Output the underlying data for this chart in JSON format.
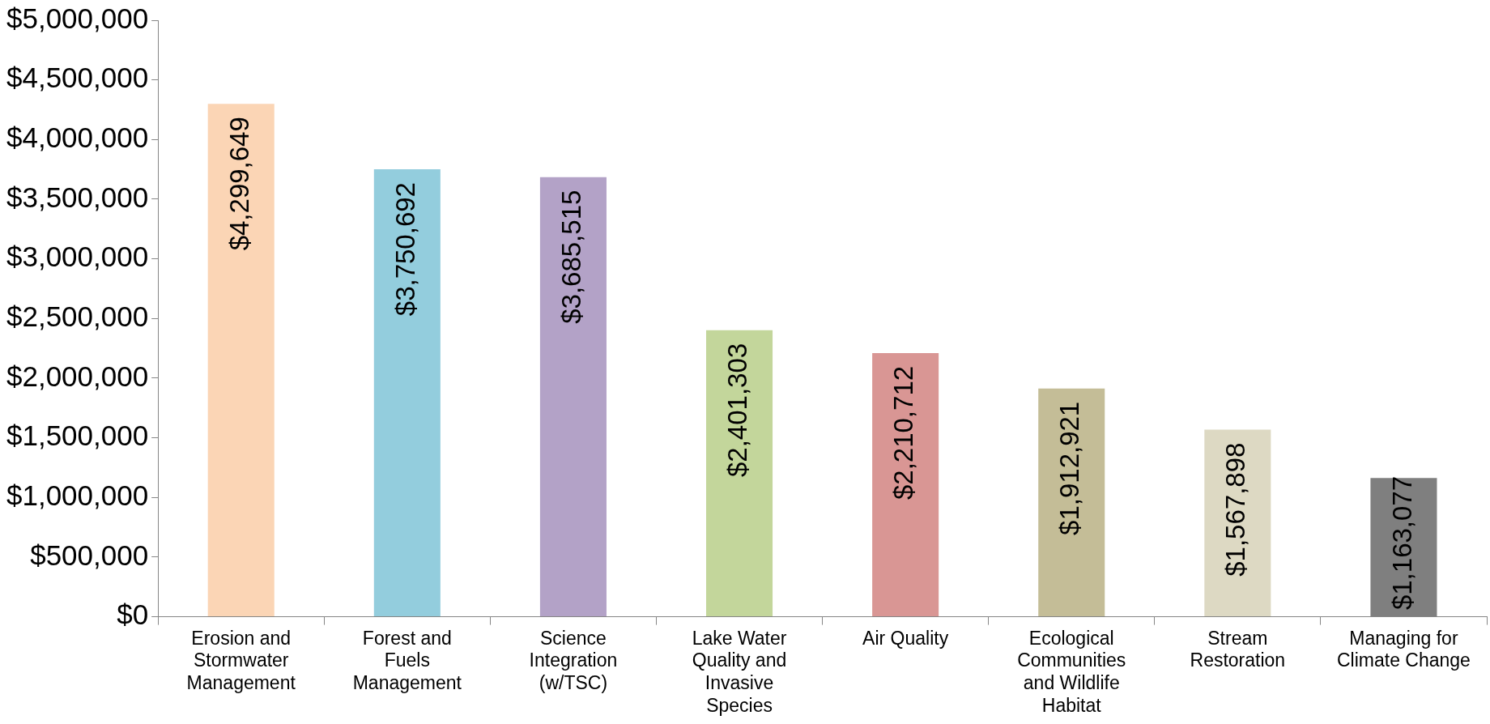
{
  "chart_data": {
    "type": "bar",
    "categories": [
      "Erosion and Stormwater Management",
      "Forest and Fuels Management",
      "Science Integration (w/TSC)",
      "Lake Water Quality and Invasive Species",
      "Air Quality",
      "Ecological Communities and Wildlife Habitat",
      "Stream Restoration",
      "Managing for Climate Change"
    ],
    "values": [
      4299649,
      3750692,
      3685515,
      2401303,
      2210712,
      1912921,
      1567898,
      1163077
    ],
    "value_labels": [
      "$4,299,649",
      "$3,750,692",
      "$3,685,515",
      "$2,401,303",
      "$2,210,712",
      "$1,912,921",
      "$1,567,898",
      "$1,163,077"
    ],
    "colors": [
      "#fbd5b5",
      "#93cddd",
      "#b3a2c7",
      "#c3d69b",
      "#d99694",
      "#c4bd97",
      "#ddd9c3",
      "#7f7f7f"
    ],
    "ylim": [
      0,
      5000000
    ],
    "yticks": [
      {
        "value": 0,
        "label": "$0"
      },
      {
        "value": 500000,
        "label": "$500,000"
      },
      {
        "value": 1000000,
        "label": "$1,000,000"
      },
      {
        "value": 1500000,
        "label": "$1,500,000"
      },
      {
        "value": 2000000,
        "label": "$2,000,000"
      },
      {
        "value": 2500000,
        "label": "$2,500,000"
      },
      {
        "value": 3000000,
        "label": "$3,000,000"
      },
      {
        "value": 3500000,
        "label": "$3,500,000"
      },
      {
        "value": 4000000,
        "label": "$4,000,000"
      },
      {
        "value": 4500000,
        "label": "$4,500,000"
      },
      {
        "value": 5000000,
        "label": "$5,000,000"
      }
    ],
    "grid": false,
    "legend": false
  }
}
